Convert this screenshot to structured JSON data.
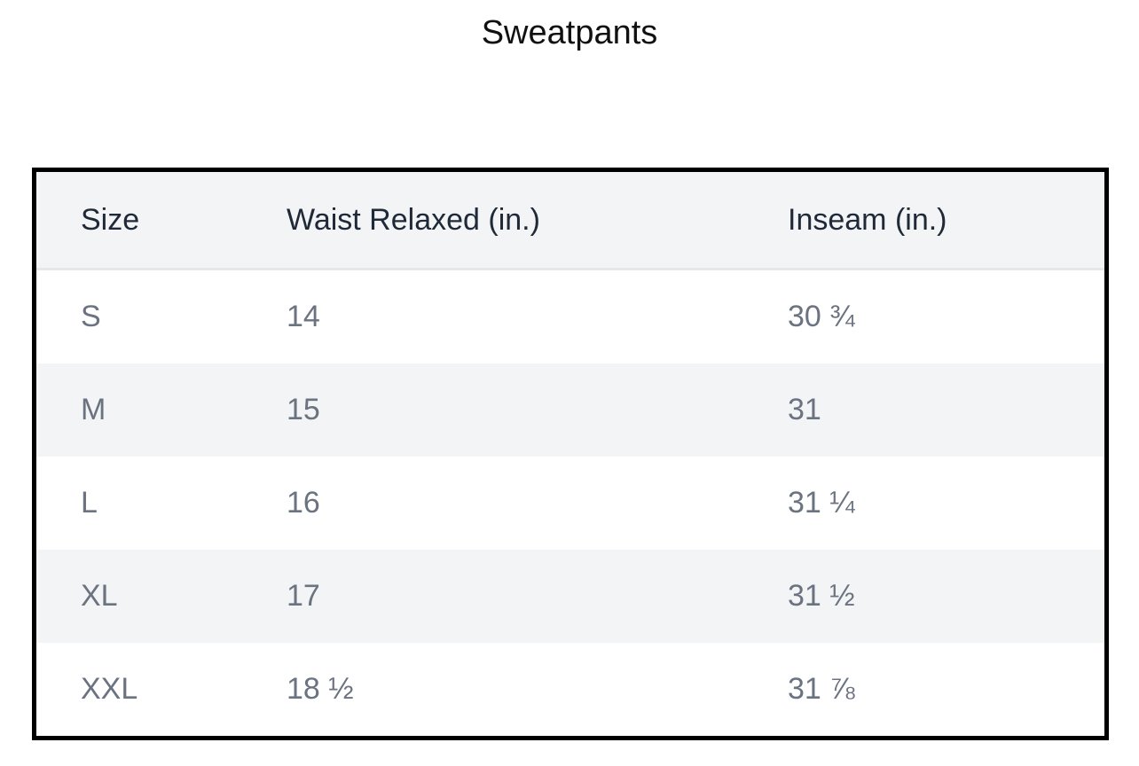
{
  "header": {
    "title": "Sweatpants"
  },
  "table": {
    "columns": [
      "Size",
      "Waist Relaxed (in.)",
      "Inseam (in.)"
    ],
    "rows": [
      [
        "S",
        "14",
        "30 ¾"
      ],
      [
        "M",
        "15",
        "31"
      ],
      [
        "L",
        "16",
        "31 ¼"
      ],
      [
        "XL",
        "17",
        "31 ½"
      ],
      [
        "XXL",
        "18 ½",
        "31 ⅞"
      ]
    ]
  }
}
